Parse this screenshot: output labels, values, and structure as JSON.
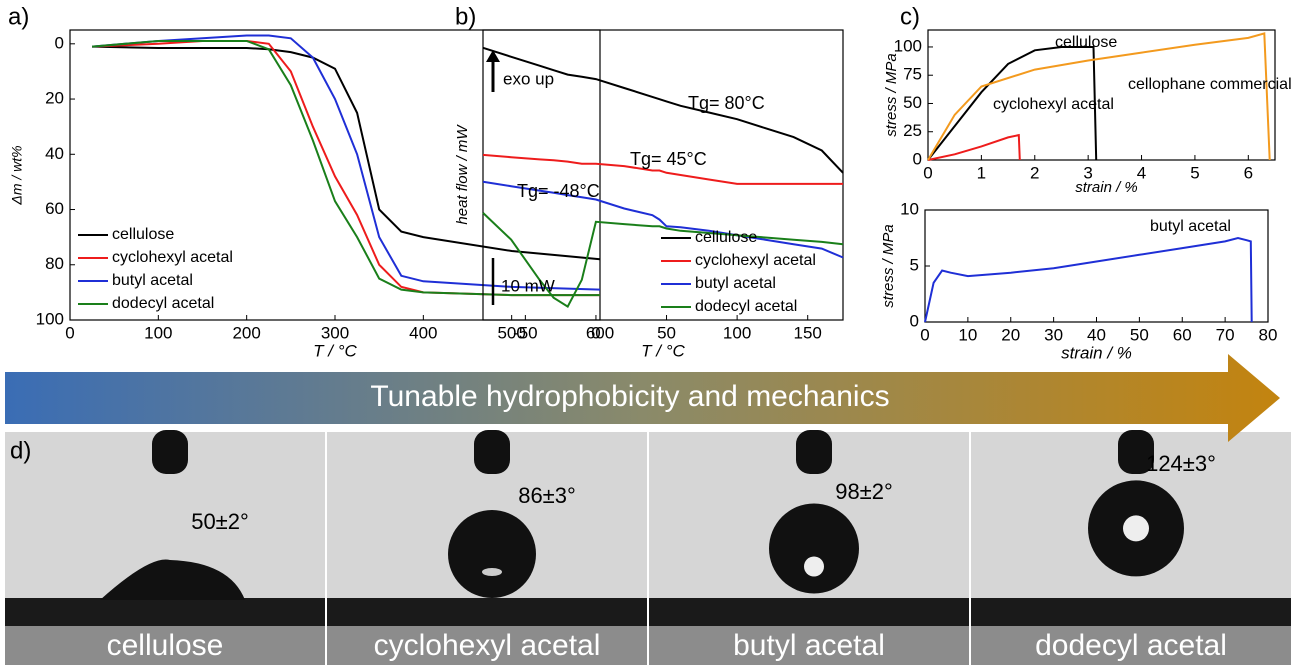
{
  "chart_data": [
    {
      "type": "line",
      "panel_label": "a)",
      "xlabel": "T / °C",
      "ylabel": "Δm / wt%",
      "x": [
        25,
        100,
        150,
        200,
        225,
        250,
        275,
        300,
        325,
        350,
        375,
        400,
        500,
        600
      ],
      "series": [
        {
          "name": "cellulose",
          "color": "#000000",
          "values": [
            1,
            1.5,
            1.5,
            1.5,
            2,
            3,
            5,
            9,
            25,
            60,
            68,
            70,
            75,
            78
          ]
        },
        {
          "name": "cyclohexyl acetal",
          "color": "#ee1c1c",
          "values": [
            1,
            0,
            -1,
            -1,
            0,
            10,
            30,
            48,
            62,
            80,
            88,
            90,
            91,
            91
          ]
        },
        {
          "name": "butyl acetal",
          "color": "#1f2fd6",
          "values": [
            1,
            -1,
            -2,
            -3,
            -3,
            -2,
            5,
            20,
            40,
            70,
            84,
            86,
            88,
            89
          ]
        },
        {
          "name": "dodecyl acetal",
          "color": "#1a7f1a",
          "values": [
            1,
            -1,
            -1,
            -1,
            2,
            15,
            35,
            57,
            70,
            85,
            89,
            90,
            91,
            91
          ]
        }
      ],
      "xlim": [
        0,
        600
      ],
      "ylim": [
        100,
        -5
      ],
      "xticks": [
        0,
        100,
        200,
        300,
        400,
        500,
        600
      ],
      "yticks": [
        0,
        20,
        40,
        60,
        80,
        100
      ]
    },
    {
      "type": "line",
      "panel_label": "b)",
      "xlabel": "T / °C",
      "ylabel": "heat flow / mW",
      "x": [
        -80,
        -60,
        -40,
        -30,
        -20,
        -10,
        0,
        20,
        40,
        45,
        50,
        60,
        80,
        100,
        120,
        140,
        160,
        175
      ],
      "series": [
        {
          "name": "cellulose",
          "color": "#000000",
          "values": [
            9.6,
            9.4,
            9.2,
            9.1,
            9.0,
            8.95,
            8.9,
            8.7,
            8.5,
            8.45,
            8.4,
            8.3,
            8.15,
            8.0,
            7.8,
            7.6,
            7.3,
            6.8
          ]
        },
        {
          "name": "cyclohexyl acetal",
          "color": "#ee1c1c",
          "values": [
            7.2,
            7.15,
            7.1,
            7.08,
            7.05,
            7.0,
            7.0,
            6.95,
            6.85,
            6.85,
            6.8,
            6.75,
            6.65,
            6.55,
            6.55,
            6.55,
            6.55,
            6.55
          ]
        },
        {
          "name": "butyl acetal",
          "color": "#1f2fd6",
          "values": [
            6.6,
            6.5,
            6.4,
            6.35,
            6.3,
            6.25,
            6.2,
            6.0,
            5.85,
            5.75,
            5.6,
            5.58,
            5.5,
            5.4,
            5.3,
            5.2,
            5.1,
            4.9
          ]
        },
        {
          "name": "dodecyl acetal",
          "color": "#1a7f1a",
          "values": [
            5.9,
            5.3,
            4.4,
            4.0,
            3.8,
            4.4,
            5.7,
            5.65,
            5.6,
            5.6,
            5.55,
            5.5,
            5.45,
            5.4,
            5.35,
            5.3,
            5.25,
            5.2
          ]
        }
      ],
      "xlim": [
        -80,
        175
      ],
      "ylim": [
        3.5,
        10
      ],
      "xticks": [
        -50,
        0,
        50,
        100,
        150
      ],
      "annotations": [
        "exo up",
        "10 mW",
        "Tg= 80°C",
        "Tg= 45°C",
        "Tg= -48°C"
      ]
    },
    {
      "type": "line",
      "panel_label": "c)",
      "xlabel": "strain / %",
      "ylabel": "stress / MPa",
      "series": [
        {
          "name": "cellulose",
          "color": "#000000",
          "x": [
            0,
            0.5,
            1,
            1.5,
            2,
            2.5,
            3.1,
            3.15
          ],
          "values": [
            0,
            30,
            60,
            85,
            97,
            100,
            100,
            0
          ]
        },
        {
          "name": "cyclohexyl acetal",
          "color": "#ee1c1c",
          "x": [
            0,
            0.5,
            1,
            1.5,
            1.7,
            1.72
          ],
          "values": [
            0,
            5,
            12,
            20,
            22,
            0
          ]
        },
        {
          "name": "cellophane commercial",
          "color": "#f39a1e",
          "x": [
            0,
            0.5,
            1,
            2,
            3,
            4,
            5,
            6,
            6.3,
            6.4
          ],
          "values": [
            0,
            40,
            65,
            80,
            88,
            95,
            102,
            108,
            112,
            0
          ]
        }
      ],
      "xlim": [
        0,
        6.5
      ],
      "ylim": [
        0,
        115
      ],
      "xticks": [
        0,
        1,
        2,
        3,
        4,
        5,
        6
      ],
      "yticks": [
        0,
        25,
        50,
        75,
        100
      ]
    },
    {
      "type": "line",
      "xlabel": "strain / %",
      "ylabel": "stress / MPa",
      "series": [
        {
          "name": "butyl acetal",
          "color": "#1f2fd6",
          "x": [
            0,
            2,
            4,
            6,
            10,
            20,
            30,
            40,
            50,
            60,
            70,
            73,
            75,
            76,
            76.2
          ],
          "values": [
            0,
            3.5,
            4.6,
            4.4,
            4.1,
            4.4,
            4.8,
            5.4,
            6,
            6.6,
            7.2,
            7.5,
            7.3,
            7.2,
            0
          ]
        }
      ],
      "xlim": [
        0,
        80
      ],
      "ylim": [
        0,
        10
      ],
      "xticks": [
        0,
        10,
        20,
        30,
        40,
        50,
        60,
        70,
        80
      ],
      "yticks": [
        0,
        5,
        10
      ]
    }
  ],
  "banner": "Tunable hydrophobicity and mechanics",
  "contact_angle": {
    "panel_label": "d)",
    "samples": [
      {
        "name": "cellulose",
        "angle": "50±2°"
      },
      {
        "name": "cyclohexyl acetal",
        "angle": "86±3°"
      },
      {
        "name": "butyl acetal",
        "angle": "98±2°"
      },
      {
        "name": "dodecyl acetal",
        "angle": "124±3°"
      }
    ]
  }
}
